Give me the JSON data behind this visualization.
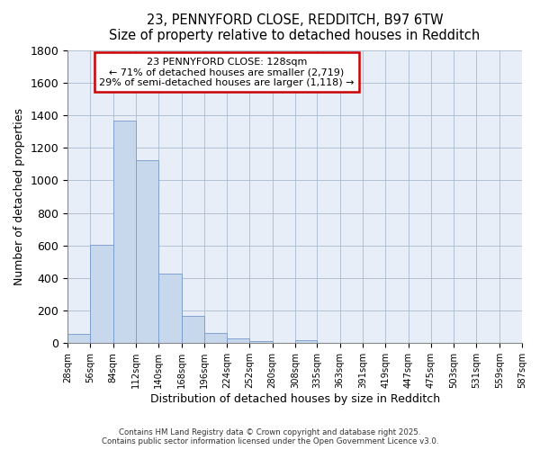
{
  "title": "23, PENNYFORD CLOSE, REDDITCH, B97 6TW",
  "subtitle": "Size of property relative to detached houses in Redditch",
  "xlabel": "Distribution of detached houses by size in Redditch",
  "ylabel": "Number of detached properties",
  "bar_color": "#c8d8ec",
  "bar_edge_color": "#7799cc",
  "background_color": "#e8eef8",
  "bins": [
    28,
    56,
    84,
    112,
    140,
    168,
    196,
    224,
    252,
    280,
    308,
    335,
    363,
    391,
    419,
    447,
    475,
    503,
    531,
    559,
    587
  ],
  "counts": [
    55,
    605,
    1365,
    1125,
    430,
    170,
    65,
    32,
    15,
    0,
    18,
    0,
    0,
    0,
    0,
    0,
    0,
    0,
    0,
    0
  ],
  "property_size": 128,
  "annotation_title": "23 PENNYFORD CLOSE: 128sqm",
  "annotation_line1": "← 71% of detached houses are smaller (2,719)",
  "annotation_line2": "29% of semi-detached houses are larger (1,118) →",
  "annotation_box_color": "#ffffff",
  "annotation_border_color": "#cc0000",
  "footer_line1": "Contains HM Land Registry data © Crown copyright and database right 2025.",
  "footer_line2": "Contains public sector information licensed under the Open Government Licence v3.0.",
  "ylim": [
    0,
    1800
  ],
  "yticks": [
    0,
    200,
    400,
    600,
    800,
    1000,
    1200,
    1400,
    1600,
    1800
  ],
  "tick_labels": [
    "28sqm",
    "56sqm",
    "84sqm",
    "112sqm",
    "140sqm",
    "168sqm",
    "196sqm",
    "224sqm",
    "252sqm",
    "280sqm",
    "308sqm",
    "335sqm",
    "363sqm",
    "391sqm",
    "419sqm",
    "447sqm",
    "475sqm",
    "503sqm",
    "531sqm",
    "559sqm",
    "587sqm"
  ]
}
